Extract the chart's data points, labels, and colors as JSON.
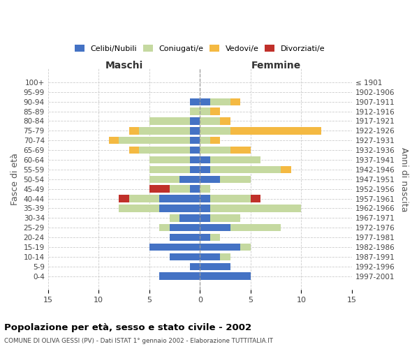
{
  "age_groups": [
    "100+",
    "95-99",
    "90-94",
    "85-89",
    "80-84",
    "75-79",
    "70-74",
    "65-69",
    "60-64",
    "55-59",
    "50-54",
    "45-49",
    "40-44",
    "35-39",
    "30-34",
    "25-29",
    "20-24",
    "15-19",
    "10-14",
    "5-9",
    "0-4"
  ],
  "birth_years": [
    "≤ 1901",
    "1902-1906",
    "1907-1911",
    "1912-1916",
    "1917-1921",
    "1922-1926",
    "1927-1931",
    "1932-1936",
    "1937-1941",
    "1942-1946",
    "1947-1951",
    "1952-1956",
    "1957-1961",
    "1962-1966",
    "1967-1971",
    "1972-1976",
    "1977-1981",
    "1982-1986",
    "1987-1991",
    "1992-1996",
    "1997-2001"
  ],
  "colors": {
    "celibi": "#4472C4",
    "coniugati": "#C5D9A0",
    "vedovi": "#F4B942",
    "divorziati": "#C0302A"
  },
  "maschi": {
    "celibi": [
      0,
      0,
      1,
      0,
      1,
      1,
      1,
      1,
      1,
      1,
      2,
      1,
      4,
      4,
      2,
      3,
      3,
      5,
      3,
      1,
      4
    ],
    "coniugati": [
      0,
      0,
      0,
      1,
      4,
      5,
      7,
      5,
      4,
      4,
      3,
      2,
      3,
      4,
      1,
      1,
      0,
      0,
      0,
      0,
      0
    ],
    "vedovi": [
      0,
      0,
      0,
      0,
      0,
      1,
      1,
      1,
      0,
      0,
      0,
      0,
      0,
      0,
      0,
      0,
      0,
      0,
      0,
      0,
      0
    ],
    "divorziati": [
      0,
      0,
      0,
      0,
      0,
      0,
      0,
      0,
      0,
      0,
      0,
      2,
      1,
      0,
      0,
      0,
      0,
      0,
      0,
      0,
      0
    ]
  },
  "femmine": {
    "celibi": [
      0,
      0,
      1,
      0,
      0,
      0,
      0,
      0,
      1,
      1,
      2,
      0,
      1,
      1,
      1,
      3,
      1,
      4,
      2,
      3,
      5
    ],
    "coniugati": [
      0,
      0,
      2,
      1,
      2,
      3,
      1,
      3,
      5,
      7,
      3,
      1,
      4,
      9,
      3,
      5,
      1,
      1,
      1,
      0,
      0
    ],
    "vedovi": [
      0,
      0,
      1,
      1,
      1,
      9,
      1,
      2,
      0,
      1,
      0,
      0,
      0,
      0,
      0,
      0,
      0,
      0,
      0,
      0,
      0
    ],
    "divorziati": [
      0,
      0,
      0,
      0,
      0,
      0,
      0,
      0,
      0,
      0,
      0,
      0,
      1,
      0,
      0,
      0,
      0,
      0,
      0,
      0,
      0
    ]
  },
  "xlim": 15,
  "title": "Popolazione per età, sesso e stato civile - 2002",
  "subtitle": "COMUNE DI OLIVA GESSI (PV) - Dati ISTAT 1° gennaio 2002 - Elaborazione TUTTITALIA.IT",
  "ylabel_left": "Fasce di età",
  "ylabel_right": "Anni di nascita",
  "xlabel_left": "Maschi",
  "xlabel_right": "Femmine"
}
